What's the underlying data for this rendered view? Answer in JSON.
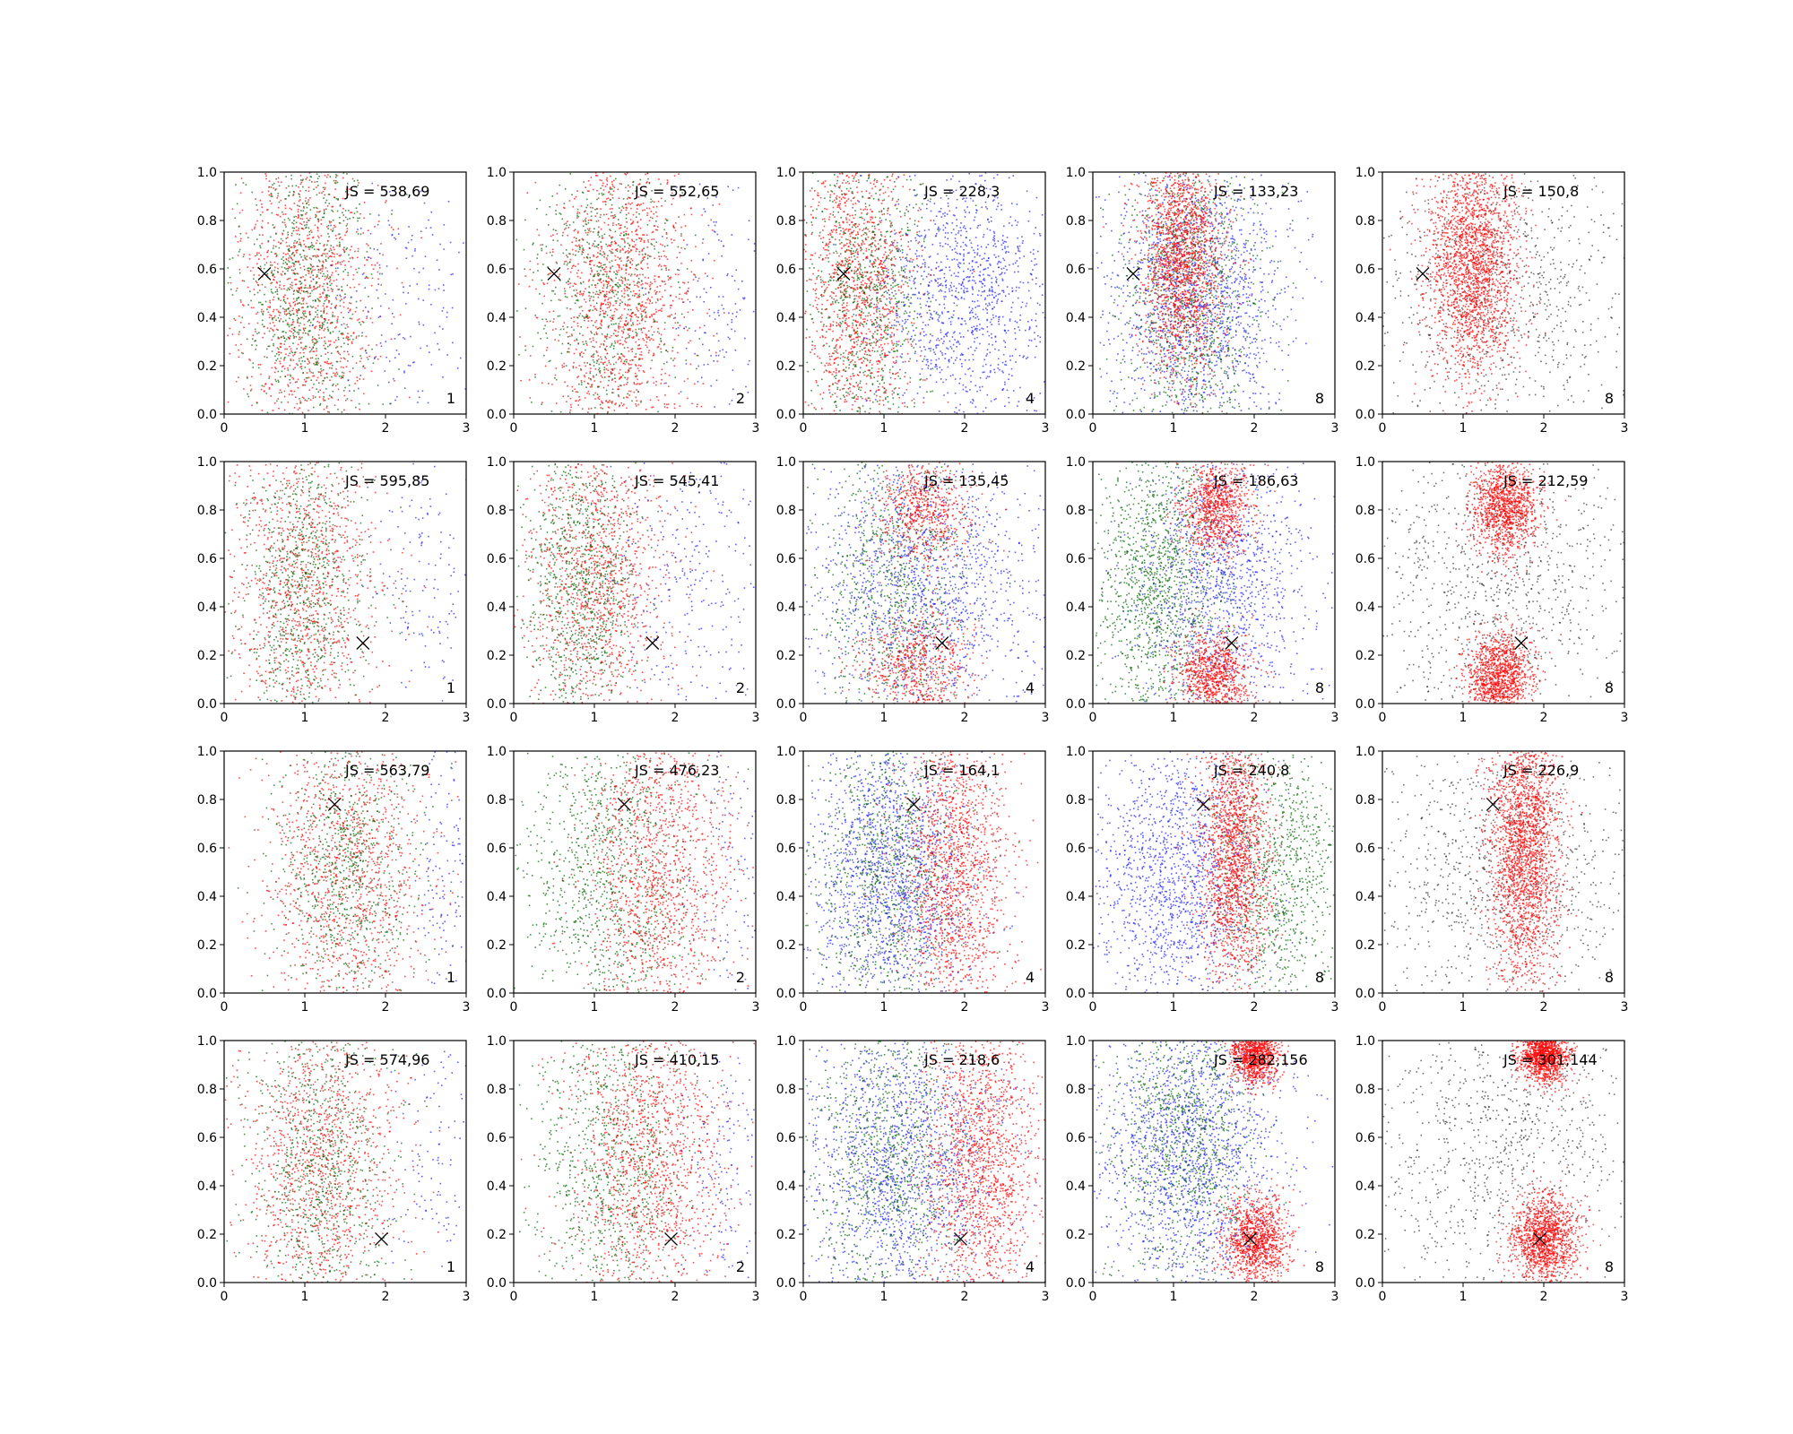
{
  "figure": {
    "rows": 4,
    "cols": 5,
    "xlim": [
      0,
      3
    ],
    "ylim": [
      0,
      1
    ],
    "xticks": [
      "0",
      "1",
      "2",
      "3"
    ],
    "yticks": [
      "0.0",
      "0.2",
      "0.4",
      "0.6",
      "0.8",
      "1.0"
    ]
  },
  "colors": {
    "red": "#ff0000",
    "green": "#006400",
    "blue": "#2020ff",
    "black": "#000000",
    "axes": "#000000"
  },
  "chart_data": [
    {
      "row": 0,
      "col": 0,
      "type": "scatter",
      "annotation": "JS = 538,69",
      "count_label": "1",
      "marker": [
        0.5,
        0.58
      ],
      "series": [
        {
          "color": "red",
          "n": 1200,
          "clusters": [
            {
              "x": 1.0,
              "y": 0.5,
              "sx": 0.45,
              "sy": 0.35
            }
          ]
        },
        {
          "color": "green",
          "n": 900,
          "clusters": [
            {
              "x": 1.0,
              "y": 0.5,
              "sx": 0.4,
              "sy": 0.35
            }
          ]
        },
        {
          "color": "blue",
          "n": 200,
          "clusters": [
            {
              "x": 2.3,
              "y": 0.5,
              "sx": 0.5,
              "sy": 0.3
            }
          ]
        }
      ]
    },
    {
      "row": 0,
      "col": 1,
      "type": "scatter",
      "annotation": "JS = 552,65",
      "count_label": "2",
      "marker": [
        0.5,
        0.58
      ],
      "series": [
        {
          "color": "red",
          "n": 1500,
          "clusters": [
            {
              "x": 1.3,
              "y": 0.5,
              "sx": 0.45,
              "sy": 0.35
            }
          ]
        },
        {
          "color": "green",
          "n": 700,
          "clusters": [
            {
              "x": 1.1,
              "y": 0.5,
              "sx": 0.45,
              "sy": 0.35
            }
          ]
        },
        {
          "color": "blue",
          "n": 150,
          "clusters": [
            {
              "x": 2.5,
              "y": 0.5,
              "sx": 0.35,
              "sy": 0.3
            }
          ]
        }
      ]
    },
    {
      "row": 0,
      "col": 2,
      "type": "scatter",
      "annotation": "JS = 228,3",
      "count_label": "4",
      "marker": [
        0.5,
        0.58
      ],
      "series": [
        {
          "color": "red",
          "n": 1400,
          "clusters": [
            {
              "x": 0.7,
              "y": 0.5,
              "sx": 0.35,
              "sy": 0.35
            }
          ]
        },
        {
          "color": "green",
          "n": 900,
          "clusters": [
            {
              "x": 0.8,
              "y": 0.5,
              "sx": 0.4,
              "sy": 0.35
            }
          ]
        },
        {
          "color": "blue",
          "n": 1200,
          "clusters": [
            {
              "x": 2.0,
              "y": 0.5,
              "sx": 0.55,
              "sy": 0.3
            }
          ]
        }
      ]
    },
    {
      "row": 0,
      "col": 3,
      "type": "scatter",
      "annotation": "JS = 133,23",
      "count_label": "8",
      "marker": [
        0.5,
        0.58
      ],
      "series": [
        {
          "color": "blue",
          "n": 1600,
          "clusters": [
            {
              "x": 1.3,
              "y": 0.5,
              "sx": 0.55,
              "sy": 0.3
            }
          ]
        },
        {
          "color": "green",
          "n": 1100,
          "clusters": [
            {
              "x": 1.2,
              "y": 0.5,
              "sx": 0.45,
              "sy": 0.35
            }
          ]
        },
        {
          "color": "red",
          "n": 1800,
          "clusters": [
            {
              "x": 1.1,
              "y": 0.65,
              "sx": 0.25,
              "sy": 0.25
            }
          ]
        }
      ]
    },
    {
      "row": 0,
      "col": 4,
      "type": "scatter",
      "annotation": "JS = 150,8",
      "count_label": "8",
      "marker": [
        0.5,
        0.58
      ],
      "series": [
        {
          "color": "black",
          "n": 900,
          "clusters": [
            {
              "x": 1.5,
              "y": 0.5,
              "sx": 0.9,
              "sy": 0.3
            }
          ]
        },
        {
          "color": "red",
          "n": 2200,
          "clusters": [
            {
              "x": 1.1,
              "y": 0.65,
              "sx": 0.28,
              "sy": 0.25
            }
          ]
        }
      ]
    },
    {
      "row": 1,
      "col": 0,
      "type": "scatter",
      "annotation": "JS = 595,85",
      "count_label": "1",
      "marker": [
        1.72,
        0.25
      ],
      "series": [
        {
          "color": "red",
          "n": 1200,
          "clusters": [
            {
              "x": 1.0,
              "y": 0.5,
              "sx": 0.45,
              "sy": 0.35
            }
          ]
        },
        {
          "color": "green",
          "n": 900,
          "clusters": [
            {
              "x": 0.95,
              "y": 0.5,
              "sx": 0.4,
              "sy": 0.35
            }
          ]
        },
        {
          "color": "blue",
          "n": 150,
          "clusters": [
            {
              "x": 2.5,
              "y": 0.5,
              "sx": 0.35,
              "sy": 0.3
            }
          ]
        }
      ]
    },
    {
      "row": 1,
      "col": 1,
      "type": "scatter",
      "annotation": "JS = 545,41",
      "count_label": "2",
      "marker": [
        1.72,
        0.25
      ],
      "series": [
        {
          "color": "red",
          "n": 1300,
          "clusters": [
            {
              "x": 1.0,
              "y": 0.5,
              "sx": 0.45,
              "sy": 0.35
            }
          ]
        },
        {
          "color": "green",
          "n": 1000,
          "clusters": [
            {
              "x": 0.8,
              "y": 0.5,
              "sx": 0.35,
              "sy": 0.35
            }
          ]
        },
        {
          "color": "blue",
          "n": 300,
          "clusters": [
            {
              "x": 2.2,
              "y": 0.5,
              "sx": 0.5,
              "sy": 0.3
            }
          ]
        }
      ]
    },
    {
      "row": 1,
      "col": 2,
      "type": "scatter",
      "annotation": "JS = 135,45",
      "count_label": "4",
      "marker": [
        1.72,
        0.25
      ],
      "series": [
        {
          "color": "blue",
          "n": 1500,
          "clusters": [
            {
              "x": 1.5,
              "y": 0.5,
              "sx": 0.7,
              "sy": 0.3
            }
          ]
        },
        {
          "color": "green",
          "n": 900,
          "clusters": [
            {
              "x": 1.1,
              "y": 0.5,
              "sx": 0.45,
              "sy": 0.35
            }
          ]
        },
        {
          "color": "red",
          "n": 1300,
          "clusters": [
            {
              "x": 1.5,
              "y": 0.8,
              "sx": 0.3,
              "sy": 0.12
            },
            {
              "x": 1.4,
              "y": 0.15,
              "sx": 0.35,
              "sy": 0.12
            }
          ]
        }
      ]
    },
    {
      "row": 1,
      "col": 3,
      "type": "scatter",
      "annotation": "JS = 186,63",
      "count_label": "8",
      "marker": [
        1.72,
        0.25
      ],
      "series": [
        {
          "color": "blue",
          "n": 1300,
          "clusters": [
            {
              "x": 1.6,
              "y": 0.5,
              "sx": 0.55,
              "sy": 0.3
            }
          ]
        },
        {
          "color": "green",
          "n": 1300,
          "clusters": [
            {
              "x": 0.8,
              "y": 0.5,
              "sx": 0.4,
              "sy": 0.3
            }
          ]
        },
        {
          "color": "red",
          "n": 1800,
          "clusters": [
            {
              "x": 1.55,
              "y": 0.82,
              "sx": 0.22,
              "sy": 0.1
            },
            {
              "x": 1.5,
              "y": 0.12,
              "sx": 0.22,
              "sy": 0.09
            }
          ]
        }
      ]
    },
    {
      "row": 1,
      "col": 4,
      "type": "scatter",
      "annotation": "JS = 212,59",
      "count_label": "8",
      "marker": [
        1.72,
        0.25
      ],
      "series": [
        {
          "color": "black",
          "n": 1000,
          "clusters": [
            {
              "x": 1.5,
              "y": 0.5,
              "sx": 0.9,
              "sy": 0.3
            }
          ]
        },
        {
          "color": "red",
          "n": 2400,
          "clusters": [
            {
              "x": 1.5,
              "y": 0.82,
              "sx": 0.2,
              "sy": 0.1
            },
            {
              "x": 1.45,
              "y": 0.12,
              "sx": 0.2,
              "sy": 0.09
            }
          ]
        }
      ]
    },
    {
      "row": 2,
      "col": 0,
      "type": "scatter",
      "annotation": "JS = 563,79",
      "count_label": "1",
      "marker": [
        1.37,
        0.78
      ],
      "series": [
        {
          "color": "red",
          "n": 1300,
          "clusters": [
            {
              "x": 1.5,
              "y": 0.5,
              "sx": 0.5,
              "sy": 0.35
            }
          ]
        },
        {
          "color": "green",
          "n": 900,
          "clusters": [
            {
              "x": 1.5,
              "y": 0.5,
              "sx": 0.45,
              "sy": 0.35
            }
          ]
        },
        {
          "color": "blue",
          "n": 150,
          "clusters": [
            {
              "x": 2.7,
              "y": 0.5,
              "sx": 0.2,
              "sy": 0.3
            }
          ]
        }
      ]
    },
    {
      "row": 2,
      "col": 1,
      "type": "scatter",
      "annotation": "JS = 476,23",
      "count_label": "2",
      "marker": [
        1.37,
        0.78
      ],
      "series": [
        {
          "color": "green",
          "n": 1100,
          "clusters": [
            {
              "x": 1.2,
              "y": 0.5,
              "sx": 0.55,
              "sy": 0.35
            }
          ]
        },
        {
          "color": "red",
          "n": 1400,
          "clusters": [
            {
              "x": 1.8,
              "y": 0.5,
              "sx": 0.45,
              "sy": 0.35
            }
          ]
        },
        {
          "color": "blue",
          "n": 100,
          "clusters": [
            {
              "x": 2.7,
              "y": 0.5,
              "sx": 0.2,
              "sy": 0.3
            }
          ]
        }
      ]
    },
    {
      "row": 2,
      "col": 2,
      "type": "scatter",
      "annotation": "JS = 164,1",
      "count_label": "4",
      "marker": [
        1.37,
        0.78
      ],
      "series": [
        {
          "color": "blue",
          "n": 1600,
          "clusters": [
            {
              "x": 1.1,
              "y": 0.5,
              "sx": 0.5,
              "sy": 0.3
            }
          ]
        },
        {
          "color": "green",
          "n": 1000,
          "clusters": [
            {
              "x": 1.0,
              "y": 0.5,
              "sx": 0.45,
              "sy": 0.35
            }
          ]
        },
        {
          "color": "red",
          "n": 1600,
          "clusters": [
            {
              "x": 1.9,
              "y": 0.5,
              "sx": 0.35,
              "sy": 0.35
            }
          ]
        }
      ]
    },
    {
      "row": 2,
      "col": 3,
      "type": "scatter",
      "annotation": "JS = 240,8",
      "count_label": "8",
      "marker": [
        1.37,
        0.78
      ],
      "series": [
        {
          "color": "blue",
          "n": 1500,
          "clusters": [
            {
              "x": 1.0,
              "y": 0.5,
              "sx": 0.55,
              "sy": 0.3
            }
          ]
        },
        {
          "color": "green",
          "n": 1000,
          "clusters": [
            {
              "x": 2.3,
              "y": 0.5,
              "sx": 0.4,
              "sy": 0.3
            }
          ]
        },
        {
          "color": "red",
          "n": 1800,
          "clusters": [
            {
              "x": 1.75,
              "y": 0.6,
              "sx": 0.22,
              "sy": 0.3
            }
          ]
        }
      ]
    },
    {
      "row": 2,
      "col": 4,
      "type": "scatter",
      "annotation": "JS = 226,9",
      "count_label": "8",
      "marker": [
        1.37,
        0.78
      ],
      "series": [
        {
          "color": "black",
          "n": 1000,
          "clusters": [
            {
              "x": 1.5,
              "y": 0.5,
              "sx": 0.9,
              "sy": 0.3
            }
          ]
        },
        {
          "color": "red",
          "n": 2300,
          "clusters": [
            {
              "x": 1.75,
              "y": 0.6,
              "sx": 0.22,
              "sy": 0.3
            }
          ]
        }
      ]
    },
    {
      "row": 3,
      "col": 0,
      "type": "scatter",
      "annotation": "JS = 574,96",
      "count_label": "1",
      "marker": [
        1.95,
        0.18
      ],
      "series": [
        {
          "color": "red",
          "n": 1300,
          "clusters": [
            {
              "x": 1.2,
              "y": 0.5,
              "sx": 0.5,
              "sy": 0.35
            }
          ]
        },
        {
          "color": "green",
          "n": 900,
          "clusters": [
            {
              "x": 1.2,
              "y": 0.5,
              "sx": 0.45,
              "sy": 0.35
            }
          ]
        },
        {
          "color": "blue",
          "n": 120,
          "clusters": [
            {
              "x": 2.6,
              "y": 0.5,
              "sx": 0.25,
              "sy": 0.3
            }
          ]
        }
      ]
    },
    {
      "row": 3,
      "col": 1,
      "type": "scatter",
      "annotation": "JS = 410,15",
      "count_label": "2",
      "marker": [
        1.95,
        0.18
      ],
      "series": [
        {
          "color": "green",
          "n": 1000,
          "clusters": [
            {
              "x": 1.2,
              "y": 0.5,
              "sx": 0.5,
              "sy": 0.35
            }
          ]
        },
        {
          "color": "red",
          "n": 1400,
          "clusters": [
            {
              "x": 1.7,
              "y": 0.5,
              "sx": 0.5,
              "sy": 0.35
            }
          ]
        },
        {
          "color": "blue",
          "n": 150,
          "clusters": [
            {
              "x": 2.6,
              "y": 0.5,
              "sx": 0.25,
              "sy": 0.3
            }
          ]
        }
      ]
    },
    {
      "row": 3,
      "col": 2,
      "type": "scatter",
      "annotation": "JS = 218,6",
      "count_label": "4",
      "marker": [
        1.95,
        0.18
      ],
      "series": [
        {
          "color": "blue",
          "n": 1600,
          "clusters": [
            {
              "x": 1.2,
              "y": 0.5,
              "sx": 0.6,
              "sy": 0.3
            }
          ]
        },
        {
          "color": "green",
          "n": 1000,
          "clusters": [
            {
              "x": 1.0,
              "y": 0.5,
              "sx": 0.5,
              "sy": 0.35
            }
          ]
        },
        {
          "color": "red",
          "n": 1700,
          "clusters": [
            {
              "x": 2.2,
              "y": 0.5,
              "sx": 0.35,
              "sy": 0.35
            }
          ]
        }
      ]
    },
    {
      "row": 3,
      "col": 3,
      "type": "scatter",
      "annotation": "JS = 282,156",
      "count_label": "8",
      "marker": [
        1.95,
        0.18
      ],
      "series": [
        {
          "color": "blue",
          "n": 1700,
          "clusters": [
            {
              "x": 1.2,
              "y": 0.55,
              "sx": 0.6,
              "sy": 0.3
            }
          ]
        },
        {
          "color": "green",
          "n": 1000,
          "clusters": [
            {
              "x": 1.1,
              "y": 0.6,
              "sx": 0.45,
              "sy": 0.3
            }
          ]
        },
        {
          "color": "red",
          "n": 2200,
          "clusters": [
            {
              "x": 2.0,
              "y": 0.18,
              "sx": 0.2,
              "sy": 0.09
            },
            {
              "x": 2.0,
              "y": 0.95,
              "sx": 0.15,
              "sy": 0.06
            }
          ]
        }
      ]
    },
    {
      "row": 3,
      "col": 4,
      "type": "scatter",
      "annotation": "JS = 301,144",
      "count_label": "8",
      "marker": [
        1.95,
        0.18
      ],
      "series": [
        {
          "color": "black",
          "n": 1000,
          "clusters": [
            {
              "x": 1.5,
              "y": 0.55,
              "sx": 0.9,
              "sy": 0.3
            }
          ]
        },
        {
          "color": "red",
          "n": 2600,
          "clusters": [
            {
              "x": 2.0,
              "y": 0.18,
              "sx": 0.2,
              "sy": 0.09
            },
            {
              "x": 2.0,
              "y": 0.95,
              "sx": 0.15,
              "sy": 0.06
            }
          ]
        }
      ]
    }
  ]
}
